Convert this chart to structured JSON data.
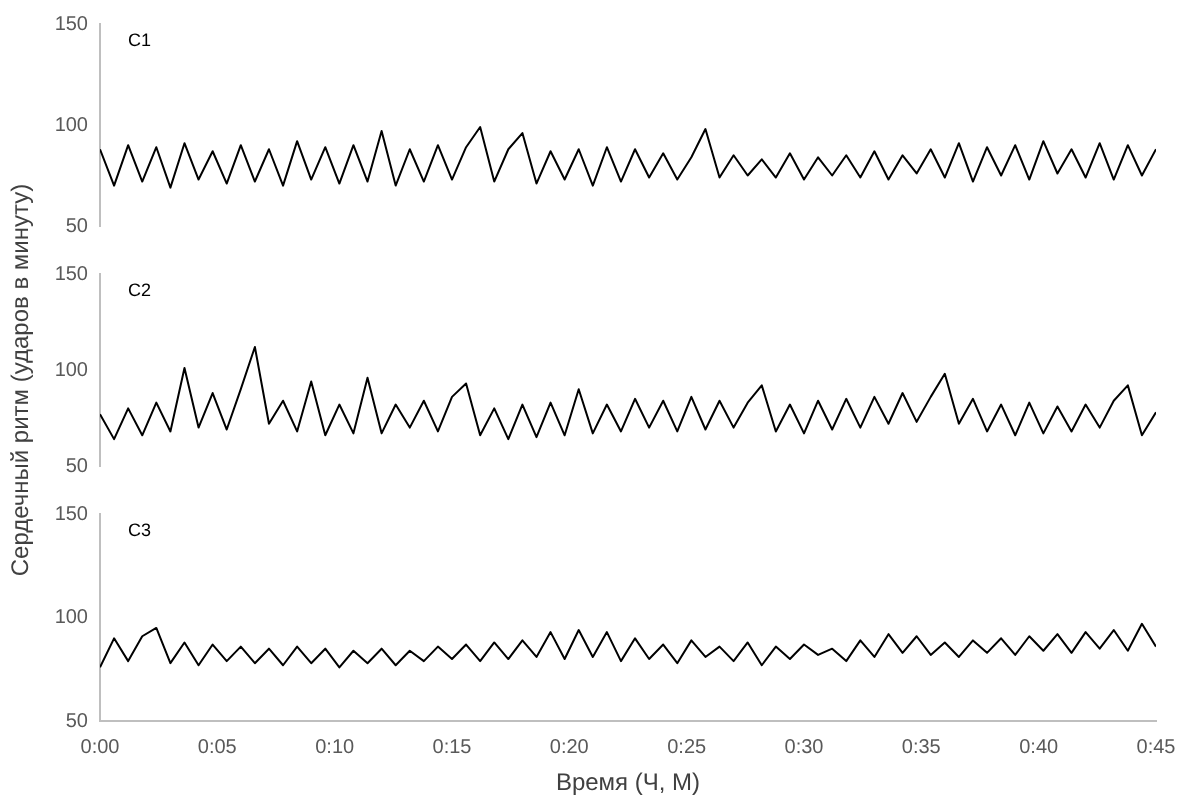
{
  "chart_data": [
    {
      "type": "line",
      "title": "C1",
      "tick_labels": "y",
      "xlim": [
        0,
        0.75
      ],
      "ylim": [
        50,
        150
      ],
      "yticks": [
        50,
        100,
        150
      ],
      "x": [
        0,
        0.01,
        0.02,
        0.03,
        0.04,
        0.05,
        0.06,
        0.07,
        0.08,
        0.09,
        0.1,
        0.11,
        0.12,
        0.13,
        0.14,
        0.15,
        0.16,
        0.17,
        0.18,
        0.19,
        0.2,
        0.21,
        0.22,
        0.23,
        0.24,
        0.25,
        0.26,
        0.27,
        0.28,
        0.29,
        0.3,
        0.31,
        0.32,
        0.33,
        0.34,
        0.35,
        0.36,
        0.37,
        0.38,
        0.39,
        0.4,
        0.41,
        0.42,
        0.43,
        0.44,
        0.45,
        0.46,
        0.47,
        0.48,
        0.49,
        0.5,
        0.51,
        0.52,
        0.53,
        0.54,
        0.55,
        0.56,
        0.57,
        0.58,
        0.59,
        0.6,
        0.61,
        0.62,
        0.63,
        0.64,
        0.65,
        0.66,
        0.67,
        0.68,
        0.69,
        0.7,
        0.71,
        0.72,
        0.73,
        0.74,
        0.75
      ],
      "series": [
        {
          "color": "#000000",
          "values": [
            88,
            70,
            90,
            72,
            89,
            69,
            91,
            73,
            87,
            71,
            90,
            72,
            88,
            70,
            92,
            73,
            89,
            71,
            90,
            72,
            97,
            70,
            88,
            72,
            90,
            73,
            89,
            99,
            72,
            88,
            96,
            71,
            87,
            73,
            88,
            70,
            89,
            72,
            88,
            74,
            86,
            73,
            84,
            98,
            74,
            85,
            75,
            83,
            74,
            86,
            73,
            84,
            75,
            85,
            74,
            87,
            73,
            85,
            76,
            88,
            74,
            91,
            72,
            89,
            75,
            90,
            73,
            92,
            76,
            88,
            74,
            91,
            73,
            90,
            75,
            88
          ]
        }
      ]
    },
    {
      "type": "line",
      "title": "C2",
      "ylabel": "Сердечный ритм (ударов в минуту)",
      "tick_labels": "y",
      "xlim": [
        0,
        0.75
      ],
      "ylim": [
        50,
        150
      ],
      "yticks": [
        50,
        100,
        150
      ],
      "x": [
        0,
        0.01,
        0.02,
        0.03,
        0.04,
        0.05,
        0.06,
        0.07,
        0.08,
        0.09,
        0.1,
        0.11,
        0.12,
        0.13,
        0.14,
        0.15,
        0.16,
        0.17,
        0.18,
        0.19,
        0.2,
        0.21,
        0.22,
        0.23,
        0.24,
        0.25,
        0.26,
        0.27,
        0.28,
        0.29,
        0.3,
        0.31,
        0.32,
        0.33,
        0.34,
        0.35,
        0.36,
        0.37,
        0.38,
        0.39,
        0.4,
        0.41,
        0.42,
        0.43,
        0.44,
        0.45,
        0.46,
        0.47,
        0.48,
        0.49,
        0.5,
        0.51,
        0.52,
        0.53,
        0.54,
        0.55,
        0.56,
        0.57,
        0.58,
        0.59,
        0.6,
        0.61,
        0.62,
        0.63,
        0.64,
        0.65,
        0.66,
        0.67,
        0.68,
        0.69,
        0.7,
        0.71,
        0.72,
        0.73,
        0.74,
        0.75
      ],
      "series": [
        {
          "color": "#000000",
          "values": [
            77,
            64,
            80,
            66,
            83,
            68,
            101,
            70,
            88,
            69,
            90,
            112,
            72,
            84,
            68,
            94,
            66,
            82,
            67,
            96,
            67,
            82,
            70,
            84,
            68,
            86,
            93,
            66,
            80,
            64,
            82,
            65,
            83,
            66,
            90,
            67,
            82,
            68,
            85,
            70,
            84,
            68,
            86,
            69,
            84,
            70,
            83,
            92,
            68,
            82,
            67,
            84,
            69,
            85,
            70,
            86,
            72,
            88,
            73,
            86,
            98,
            72,
            85,
            68,
            82,
            66,
            83,
            67,
            81,
            68,
            82,
            70,
            84,
            92,
            66,
            78
          ]
        }
      ]
    },
    {
      "type": "line",
      "title": "C3",
      "xlabel": "Время (Ч, М)",
      "xlim": [
        0,
        0.75
      ],
      "ylim": [
        50,
        150
      ],
      "yticks": [
        50,
        100,
        150
      ],
      "xticks": [
        {
          "value": 0,
          "label": "0:00"
        },
        {
          "value": 0.0833,
          "label": "0:05"
        },
        {
          "value": 0.1667,
          "label": "0:10"
        },
        {
          "value": 0.25,
          "label": "0:15"
        },
        {
          "value": 0.3333,
          "label": "0:20"
        },
        {
          "value": 0.4167,
          "label": "0:25"
        },
        {
          "value": 0.5,
          "label": "0:30"
        },
        {
          "value": 0.5833,
          "label": "0:35"
        },
        {
          "value": 0.6667,
          "label": "0:40"
        },
        {
          "value": 0.75,
          "label": "0:45"
        }
      ],
      "x": [
        0,
        0.01,
        0.02,
        0.03,
        0.04,
        0.05,
        0.06,
        0.07,
        0.08,
        0.09,
        0.1,
        0.11,
        0.12,
        0.13,
        0.14,
        0.15,
        0.16,
        0.17,
        0.18,
        0.19,
        0.2,
        0.21,
        0.22,
        0.23,
        0.24,
        0.25,
        0.26,
        0.27,
        0.28,
        0.29,
        0.3,
        0.31,
        0.32,
        0.33,
        0.34,
        0.35,
        0.36,
        0.37,
        0.38,
        0.39,
        0.4,
        0.41,
        0.42,
        0.43,
        0.44,
        0.45,
        0.46,
        0.47,
        0.48,
        0.49,
        0.5,
        0.51,
        0.52,
        0.53,
        0.54,
        0.55,
        0.56,
        0.57,
        0.58,
        0.59,
        0.6,
        0.61,
        0.62,
        0.63,
        0.64,
        0.65,
        0.66,
        0.67,
        0.68,
        0.69,
        0.7,
        0.71,
        0.72,
        0.73,
        0.74,
        0.75
      ],
      "series": [
        {
          "color": "#000000",
          "values": [
            76,
            90,
            79,
            91,
            95,
            78,
            88,
            77,
            87,
            79,
            86,
            78,
            85,
            77,
            86,
            78,
            85,
            76,
            84,
            78,
            85,
            77,
            84,
            79,
            86,
            80,
            87,
            79,
            88,
            80,
            89,
            81,
            93,
            80,
            94,
            81,
            93,
            79,
            90,
            80,
            87,
            78,
            89,
            81,
            86,
            79,
            88,
            77,
            86,
            80,
            87,
            82,
            85,
            79,
            89,
            81,
            92,
            83,
            91,
            82,
            88,
            81,
            89,
            83,
            90,
            82,
            91,
            84,
            92,
            83,
            93,
            85,
            94,
            84,
            97,
            86
          ]
        }
      ]
    }
  ]
}
